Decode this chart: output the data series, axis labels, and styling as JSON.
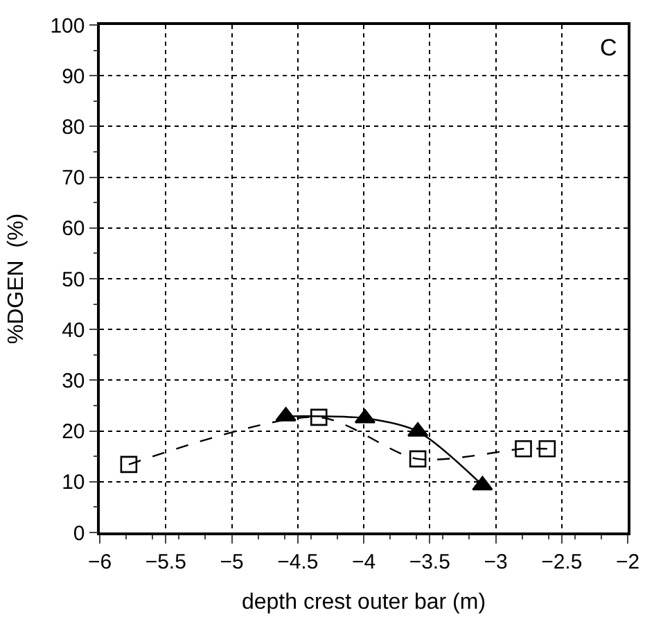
{
  "chart_data": {
    "type": "line",
    "xlabel": "depth crest outer bar (m)",
    "ylabel": "%DGEN  (%)",
    "annotations": [
      "C"
    ],
    "xlim": [
      -6,
      -2
    ],
    "xticks": [
      -6,
      -5.5,
      -5,
      -4.5,
      -4,
      -3.5,
      -3,
      -2.5,
      -2
    ],
    "ylim": [
      0,
      100
    ],
    "yticks": [
      0,
      10,
      20,
      30,
      40,
      50,
      60,
      70,
      80,
      90,
      100
    ],
    "grid": true,
    "series": [
      {
        "color": "#000000",
        "marker": "square",
        "line_style": "dashed",
        "x": [
          -5.78,
          -4.34,
          -3.59,
          -2.79,
          -2.61
        ],
        "values": [
          13.4,
          22.7,
          14.5,
          16.5,
          16.5
        ]
      },
      {
        "color": "#000000",
        "marker": "triangle",
        "line_style": "solid",
        "x": [
          -4.59,
          -3.99,
          -3.59,
          -3.1
        ],
        "values": [
          22.9,
          22.5,
          19.9,
          9.3
        ]
      }
    ]
  }
}
